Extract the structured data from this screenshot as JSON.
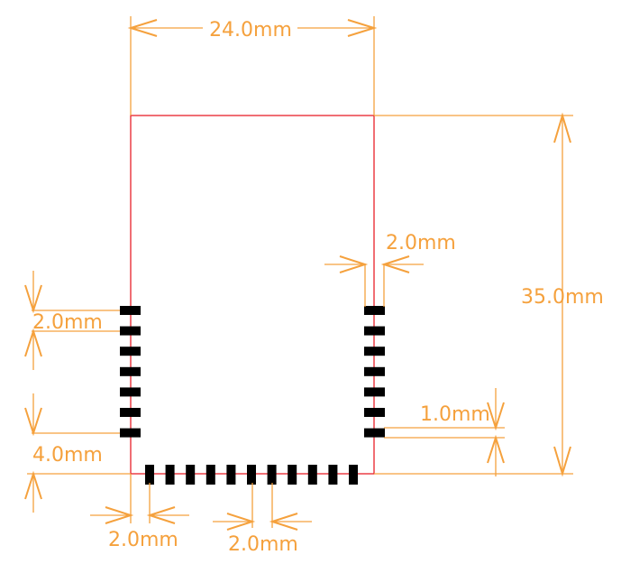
{
  "colors": {
    "dimension": "#f5a13d",
    "board_outline": "#e8202a",
    "pads": "#000000",
    "background": "#ffffff"
  },
  "labels": {
    "width": "24.0mm",
    "height": "35.0mm",
    "pad_width": "2.0mm",
    "left_pitch": "2.0mm",
    "bottom_margin": "4.0mm",
    "right_offset": "1.0mm",
    "bottom_edge_offset": "2.0mm",
    "bottom_pitch": "2.0mm"
  },
  "pads": {
    "left_count": 7,
    "right_count": 7,
    "bottom_count": 11
  }
}
